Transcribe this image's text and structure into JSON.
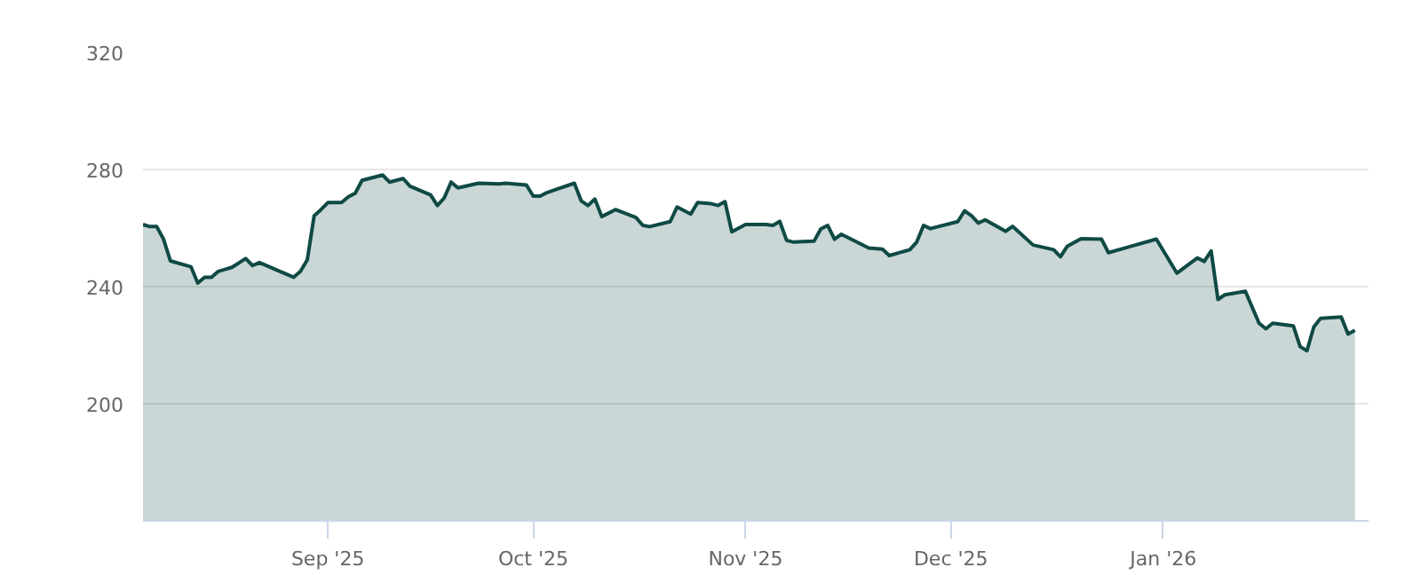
{
  "chart_data": {
    "type": "area",
    "xlim": [
      "2025-08-05",
      "2026-01-31"
    ],
    "ylim": [
      160,
      320
    ],
    "yticks": [
      200,
      240,
      280,
      320
    ],
    "xticks": [
      {
        "value": "2025-09-01",
        "label": "Sep '25"
      },
      {
        "value": "2025-10-01",
        "label": "Oct '25"
      },
      {
        "value": "2025-11-01",
        "label": "Nov '25"
      },
      {
        "value": "2025-12-01",
        "label": "Dec '25"
      },
      {
        "value": "2026-01-01",
        "label": "Jan '26"
      }
    ],
    "grid": "y",
    "x": [
      "2025-08-05",
      "2025-08-06",
      "2025-08-07",
      "2025-08-08",
      "2025-08-09",
      "2025-08-12",
      "2025-08-13",
      "2025-08-14",
      "2025-08-15",
      "2025-08-16",
      "2025-08-18",
      "2025-08-20",
      "2025-08-21",
      "2025-08-22",
      "2025-08-25",
      "2025-08-27",
      "2025-08-28",
      "2025-08-29",
      "2025-08-30",
      "2025-08-31",
      "2025-09-01",
      "2025-09-03",
      "2025-09-04",
      "2025-09-05",
      "2025-09-06",
      "2025-09-09",
      "2025-09-10",
      "2025-09-12",
      "2025-09-13",
      "2025-09-16",
      "2025-09-17",
      "2025-09-18",
      "2025-09-19",
      "2025-09-20",
      "2025-09-23",
      "2025-09-26",
      "2025-09-27",
      "2025-09-30",
      "2025-10-01",
      "2025-10-02",
      "2025-10-03",
      "2025-10-04",
      "2025-10-07",
      "2025-10-08",
      "2025-10-09",
      "2025-10-10",
      "2025-10-11",
      "2025-10-13",
      "2025-10-16",
      "2025-10-17",
      "2025-10-18",
      "2025-10-21",
      "2025-10-22",
      "2025-10-24",
      "2025-10-25",
      "2025-10-27",
      "2025-10-28",
      "2025-10-29",
      "2025-10-30",
      "2025-11-01",
      "2025-11-04",
      "2025-11-05",
      "2025-11-06",
      "2025-11-07",
      "2025-11-08",
      "2025-11-11",
      "2025-11-12",
      "2025-11-13",
      "2025-11-14",
      "2025-11-15",
      "2025-11-19",
      "2025-11-21",
      "2025-11-22",
      "2025-11-25",
      "2025-11-26",
      "2025-11-27",
      "2025-11-28",
      "2025-12-02",
      "2025-12-03",
      "2025-12-04",
      "2025-12-05",
      "2025-12-06",
      "2025-12-09",
      "2025-12-10",
      "2025-12-13",
      "2025-12-16",
      "2025-12-17",
      "2025-12-18",
      "2025-12-20",
      "2025-12-23",
      "2025-12-24",
      "2025-12-31",
      "2026-01-03",
      "2026-01-06",
      "2026-01-07",
      "2026-01-08",
      "2026-01-09",
      "2026-01-10",
      "2026-01-13",
      "2026-01-15",
      "2026-01-16",
      "2026-01-17",
      "2026-01-20",
      "2026-01-21",
      "2026-01-22",
      "2026-01-23",
      "2026-01-24",
      "2026-01-27",
      "2026-01-28",
      "2026-01-29"
    ],
    "series": [
      {
        "color": "#0f4a44",
        "values": [
          261.2,
          260.5,
          260.5,
          256.2,
          248.8,
          246.8,
          241.2,
          243.2,
          243.2,
          245.2,
          246.6,
          249.6,
          247.2,
          248.2,
          245.2,
          243.2,
          245.2,
          249.2,
          264.2,
          266.3,
          268.7,
          268.7,
          270.7,
          271.9,
          276.3,
          278.1,
          275.7,
          276.9,
          274.3,
          271.3,
          267.7,
          270.3,
          275.7,
          273.7,
          275.3,
          275.1,
          275.3,
          274.7,
          270.9,
          270.9,
          272.1,
          272.9,
          275.3,
          269.3,
          267.7,
          269.9,
          263.9,
          266.3,
          263.6,
          260.9,
          260.5,
          262.2,
          267.2,
          264.8,
          268.7,
          268.3,
          267.7,
          269.0,
          258.7,
          261.2,
          261.2,
          260.9,
          262.3,
          255.8,
          255.2,
          255.5,
          259.7,
          260.9,
          256.2,
          257.9,
          253.2,
          252.8,
          250.6,
          252.6,
          255.2,
          260.9,
          259.8,
          262.2,
          265.9,
          264.2,
          261.7,
          262.8,
          258.9,
          260.6,
          254.2,
          252.6,
          250.2,
          253.8,
          256.4,
          256.2,
          251.6,
          256.2,
          244.6,
          249.8,
          248.6,
          252.2,
          235.6,
          237.2,
          238.4,
          227.5,
          225.6,
          227.5,
          226.6,
          219.5,
          218.1,
          226.2,
          229.2,
          229.6,
          223.8,
          225.1
        ]
      }
    ]
  }
}
